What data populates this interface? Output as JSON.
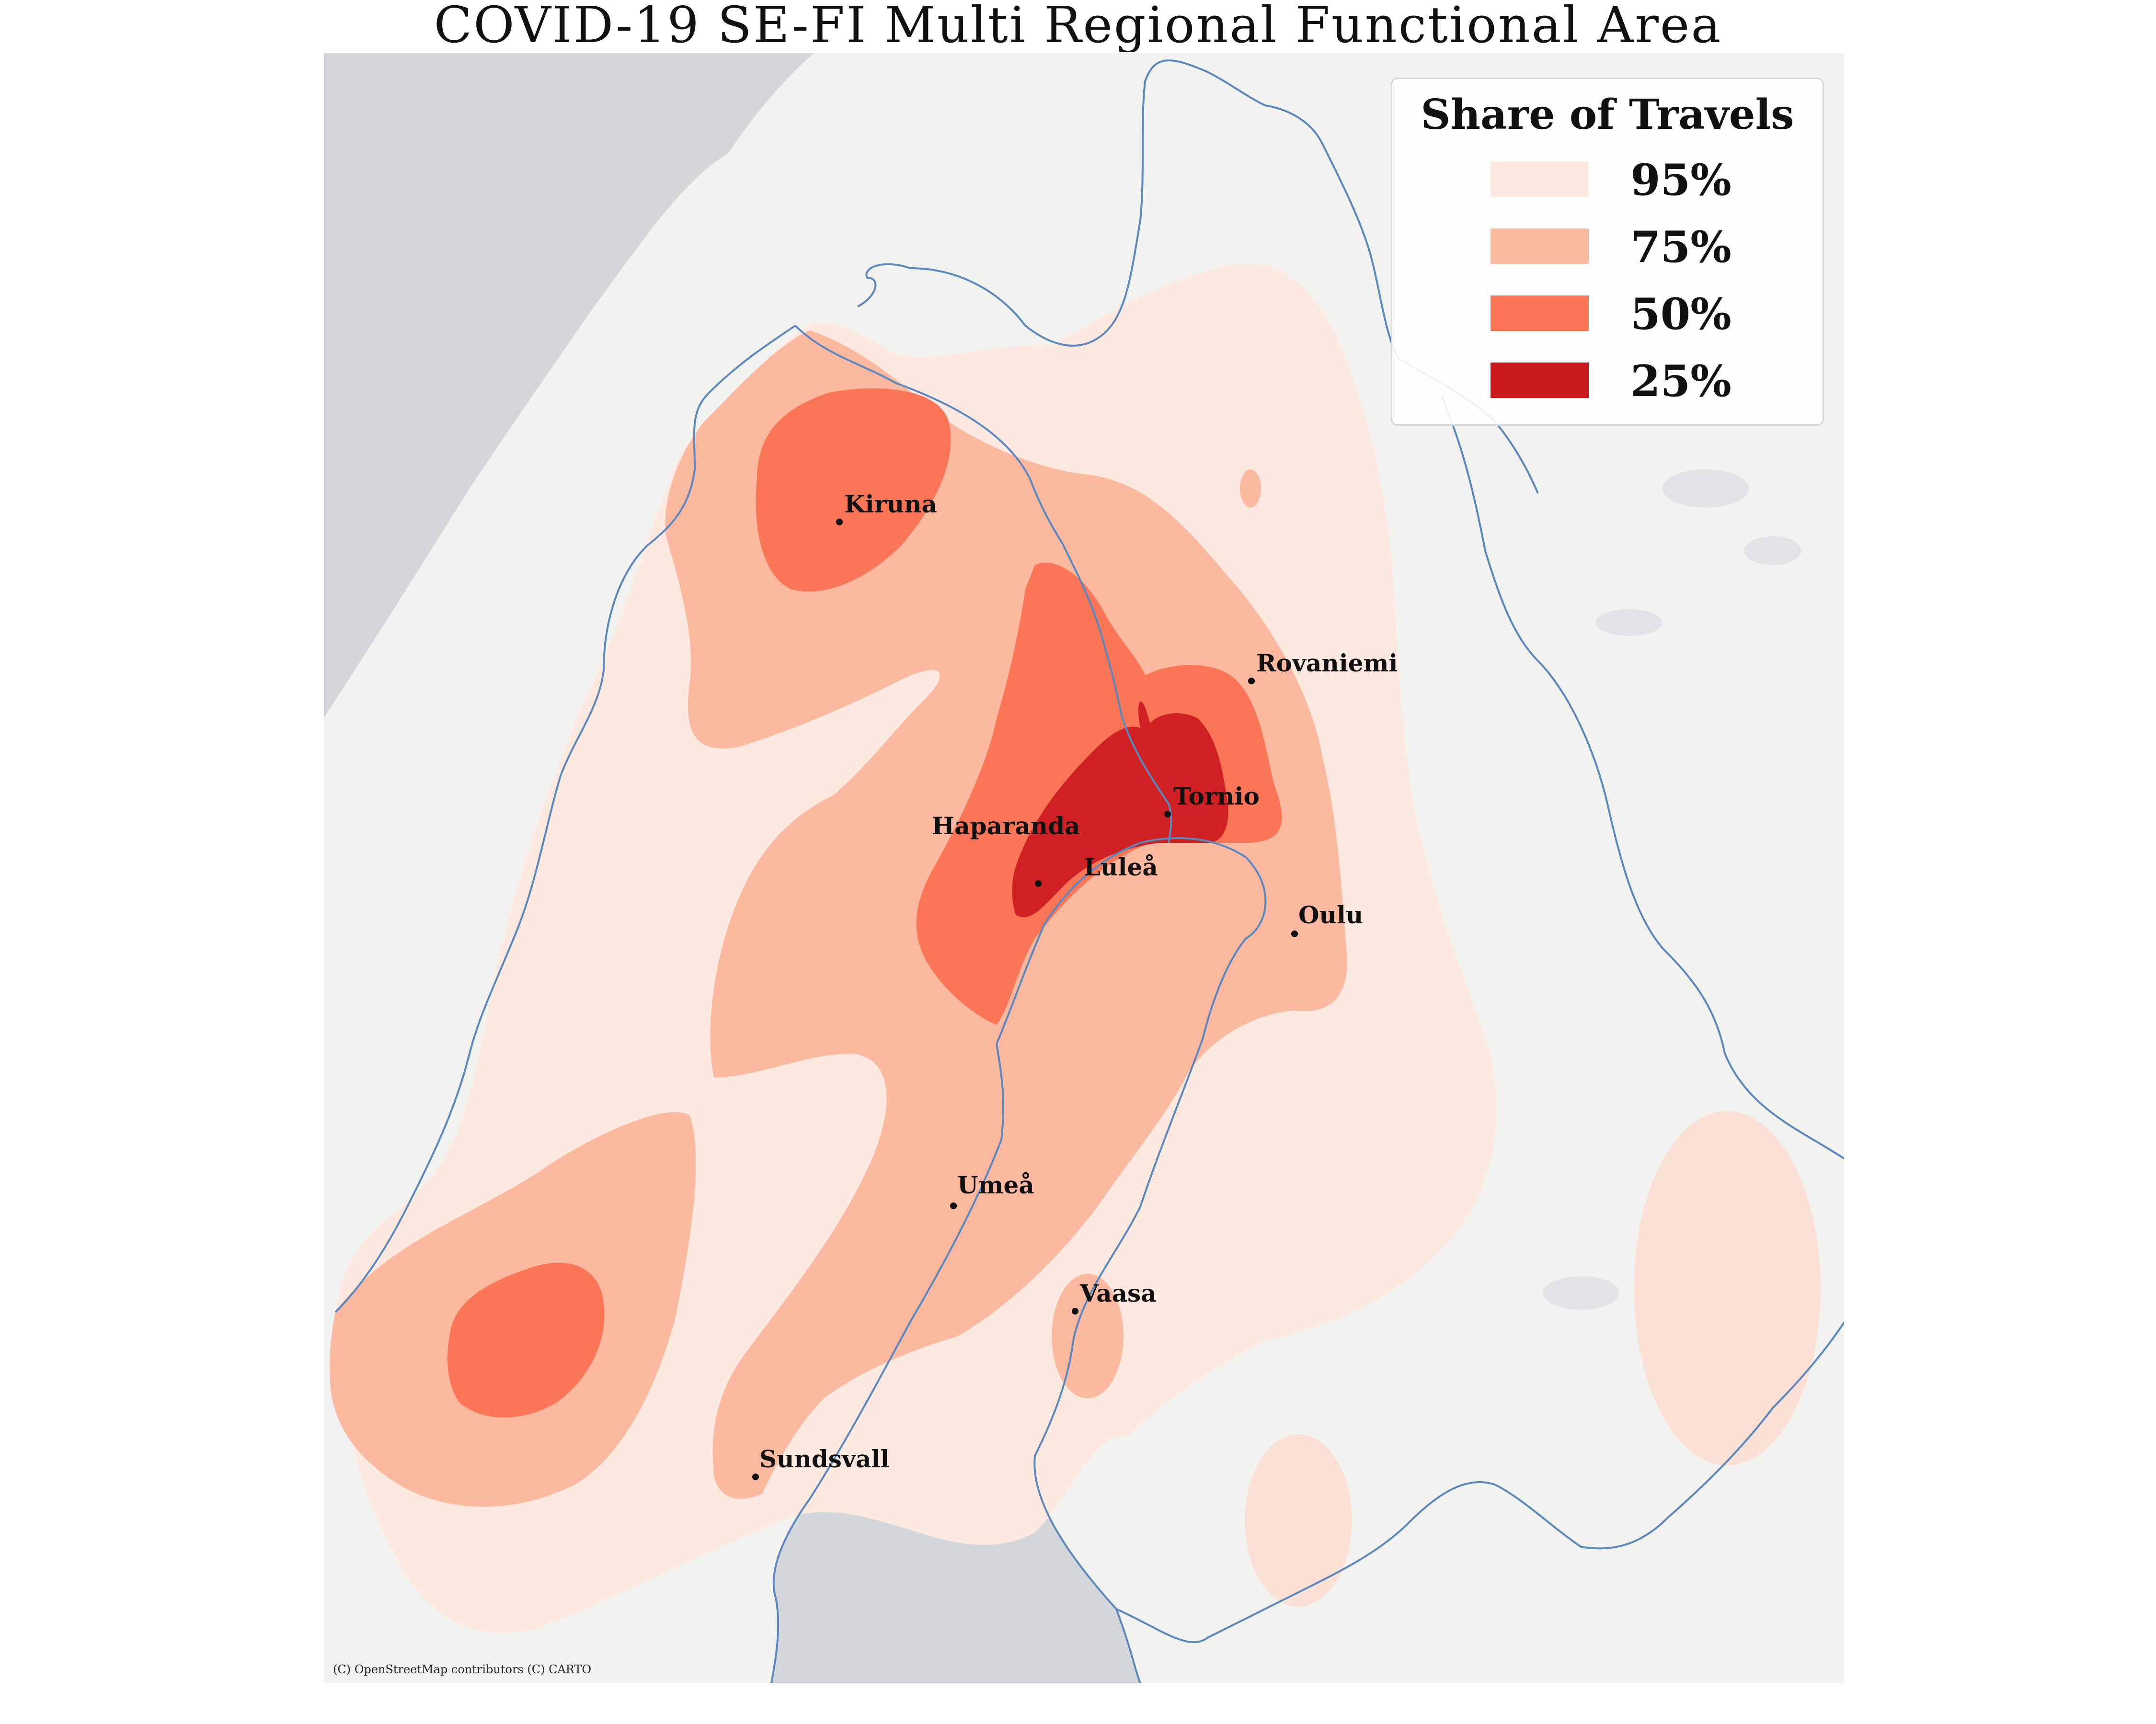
{
  "title": "COVID-19 SE-FI Multi Regional Functional Area",
  "legend": {
    "title": "Share of Travels",
    "items": [
      {
        "label": "95%",
        "color": "#fee9e0"
      },
      {
        "label": "75%",
        "color": "#fcb99f"
      },
      {
        "label": "50%",
        "color": "#fb7557"
      },
      {
        "label": "25%",
        "color": "#cb1a1e"
      }
    ]
  },
  "cities": {
    "kiruna": "Kiruna",
    "rovaniemi": "Rovaniemi",
    "tornio": "Tornio",
    "haparanda": "Haparanda",
    "lulea": "Luleå",
    "oulu": "Oulu",
    "umea": "Umeå",
    "vaasa": "Vaasa",
    "sundsvall": "Sundsvall"
  },
  "attribution": "(C) OpenStreetMap contributors (C) CARTO",
  "colors": {
    "sea": "#d3d7da",
    "land": "#f2f2f1",
    "border": "#5b87bf"
  }
}
